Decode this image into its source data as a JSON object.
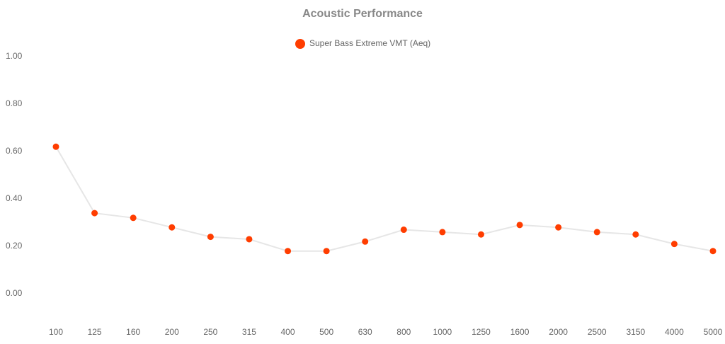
{
  "chart_data": {
    "type": "line",
    "title": "Acoustic Performance",
    "categories": [
      "100",
      "125",
      "160",
      "200",
      "250",
      "315",
      "400",
      "500",
      "630",
      "800",
      "1000",
      "1250",
      "1600",
      "2000",
      "2500",
      "3150",
      "4000",
      "5000"
    ],
    "series": [
      {
        "name": "Super Bass Extreme VMT (Aeq)",
        "color": "#ff3d00",
        "line_color": "#e6e6e6",
        "values": [
          0.62,
          0.34,
          0.32,
          0.28,
          0.24,
          0.23,
          0.18,
          0.18,
          0.22,
          0.27,
          0.26,
          0.25,
          0.29,
          0.28,
          0.26,
          0.25,
          0.21,
          0.18
        ]
      }
    ],
    "ylim": [
      -0.1,
      1.1
    ],
    "yticks": [
      {
        "value": 0,
        "label": "0.00"
      },
      {
        "value": 0.2,
        "label": "0.20"
      },
      {
        "value": 0.4,
        "label": "0.40"
      },
      {
        "value": 0.6,
        "label": "0.60"
      },
      {
        "value": 0.8,
        "label": "0.80"
      },
      {
        "value": 1,
        "label": "1.00"
      }
    ],
    "grid": false,
    "legend": "top"
  }
}
